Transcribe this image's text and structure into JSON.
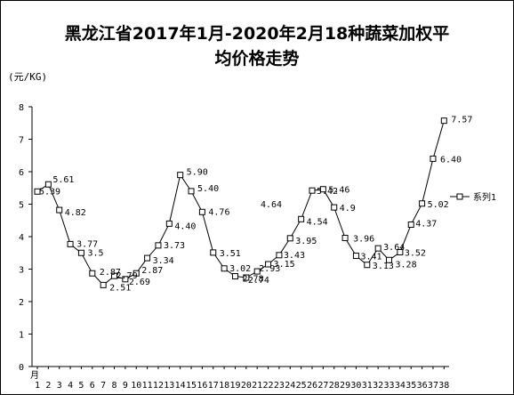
{
  "chart_data": {
    "type": "line",
    "title": "黑龙江省2017年1月-2020年2月18种蔬菜加权平均价格走势",
    "title_lines": [
      "黑龙江省2017年1月-2020年2月18种蔬菜加权平",
      "均价格走势"
    ],
    "ylabel": "(元/KG)",
    "xlabel": "月",
    "ylim": [
      0,
      8
    ],
    "yticks": [
      "0",
      "1",
      "2",
      "3",
      "4",
      "5",
      "6",
      "7",
      "8"
    ],
    "grid": false,
    "legend_position": "right",
    "categories": [
      "1",
      "2",
      "3",
      "4",
      "5",
      "6",
      "7",
      "8",
      "9",
      "10",
      "11",
      "12",
      "13",
      "14",
      "15",
      "16",
      "17",
      "18",
      "19",
      "20",
      "21",
      "22",
      "23",
      "24",
      "25",
      "26",
      "27",
      "28",
      "29",
      "30",
      "31",
      "32",
      "33",
      "34",
      "35",
      "36",
      "37",
      "38"
    ],
    "series": [
      {
        "name": "系列1",
        "color": "#000000",
        "values": [
          5.39,
          5.61,
          4.82,
          3.77,
          3.5,
          2.87,
          2.51,
          2.79,
          2.69,
          2.87,
          3.34,
          3.73,
          4.4,
          5.9,
          5.4,
          4.76,
          3.51,
          3.02,
          2.78,
          2.74,
          2.93,
          3.15,
          3.43,
          3.95,
          4.54,
          5.42,
          5.46,
          4.9,
          3.96,
          3.41,
          3.13,
          3.64,
          3.28,
          3.52,
          4.37,
          5.02,
          6.4,
          7.57
        ],
        "labels": [
          "5.39",
          "5.61",
          "4.82",
          "3.77",
          "3.5",
          "2.87",
          "2.51",
          "2.79",
          "2.69",
          "2.87",
          "3.34",
          "3.73",
          "4.40",
          "5.90",
          "5.40",
          "4.76",
          "3.51",
          "3.02",
          "2.78",
          "2.74",
          "2.93",
          "3.15",
          "3.43",
          "3.95",
          "4.54",
          "5.42",
          "5.46",
          "4.9",
          "3.96",
          "3.41",
          "3.13",
          "3.64",
          "3.28",
          "3.52",
          "4.37",
          "5.02",
          "6.40",
          "7.57"
        ]
      }
    ],
    "annotations": [
      "4.64"
    ]
  }
}
